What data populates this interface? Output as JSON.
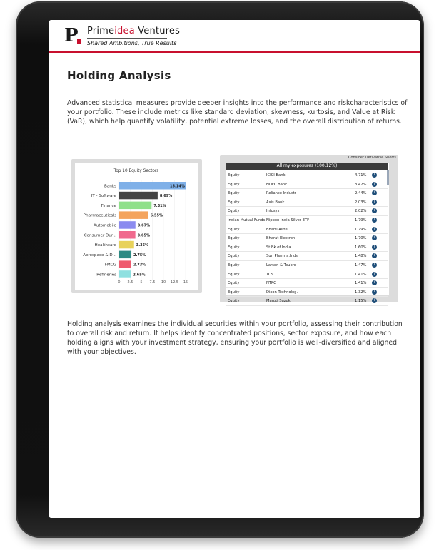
{
  "brand": {
    "logo_letter": "P",
    "name_prime": "Prime",
    "name_idea": "idea",
    "name_rest": " Ventures",
    "tagline": "Shared Ambitions, True Results",
    "accent_color": "#c8102e"
  },
  "page": {
    "title": "Holding Analysis",
    "paragraph_1": "Advanced statistical measures provide deeper insights into the performance and riskcharacteristics of your portfolio. These include metrics like standard deviation, skewness, kurtosis, and Value at Risk (VaR), which help quantify volatility, potential extreme losses, and the overall distribution of returns.",
    "paragraph_2": "Holding analysis examines the individual securities within your portfolio, assessing their contribution to overall risk and return. It helps identify concentrated positions, sector exposure, and how each holding aligns with your investment strategy, ensuring your portfolio is well-diversified and aligned with your objectives."
  },
  "chart_data": {
    "type": "bar",
    "orientation": "horizontal",
    "title": "Top 10 Equity Sectors",
    "categories": [
      "Banks",
      "IT - Software",
      "Finance",
      "Pharmaceuticals",
      "Automobile",
      "Consumer Dur...",
      "Healthcare",
      "Aerospace & D...",
      "FMCG",
      "Refineries"
    ],
    "values": [
      15.14,
      8.69,
      7.31,
      6.55,
      3.67,
      3.65,
      3.35,
      2.75,
      2.73,
      2.65
    ],
    "value_labels": [
      "15.14%",
      "8.69%",
      "7.31%",
      "6.55%",
      "3.67%",
      "3.65%",
      "3.35%",
      "2.75%",
      "2.73%",
      "2.65%"
    ],
    "colors": [
      "#7fb0e8",
      "#444444",
      "#8fe08a",
      "#f4a45e",
      "#8b8bef",
      "#f06a8e",
      "#e8d25a",
      "#2e8b84",
      "#ef5a6e",
      "#8fe0e0"
    ],
    "xlim": [
      0,
      15
    ],
    "x_ticks": [
      "0",
      "2.5",
      "5",
      "7.5",
      "10",
      "12.5",
      "15"
    ]
  },
  "exposures": {
    "note": "Consider Derivative Shorts",
    "header": "All my exposures (100.12%)",
    "info_icon": "info-icon",
    "rows": [
      {
        "type": "Equity",
        "name": "ICICI Bank",
        "pct": "4.71%"
      },
      {
        "type": "Equity",
        "name": "HDFC Bank",
        "pct": "3.42%"
      },
      {
        "type": "Equity",
        "name": "Reliance Industr",
        "pct": "2.44%"
      },
      {
        "type": "Equity",
        "name": "Axis Bank",
        "pct": "2.03%"
      },
      {
        "type": "Equity",
        "name": "Infosys",
        "pct": "2.02%"
      },
      {
        "type": "Indian Mutual Funds",
        "name": "Nippon India Silver ETF",
        "pct": "1.79%"
      },
      {
        "type": "Equity",
        "name": "Bharti Airtel",
        "pct": "1.79%"
      },
      {
        "type": "Equity",
        "name": "Bharat Electron",
        "pct": "1.70%"
      },
      {
        "type": "Equity",
        "name": "St Bk of India",
        "pct": "1.60%"
      },
      {
        "type": "Equity",
        "name": "Sun Pharma.Inds.",
        "pct": "1.48%"
      },
      {
        "type": "Equity",
        "name": "Larsen & Toubro",
        "pct": "1.47%"
      },
      {
        "type": "Equity",
        "name": "TCS",
        "pct": "1.41%"
      },
      {
        "type": "Equity",
        "name": "NTPC",
        "pct": "1.41%"
      },
      {
        "type": "Equity",
        "name": "Dixon Technolog.",
        "pct": "1.32%"
      },
      {
        "type": "Equity",
        "name": "Maruti Suzuki",
        "pct": "1.15%"
      }
    ]
  }
}
